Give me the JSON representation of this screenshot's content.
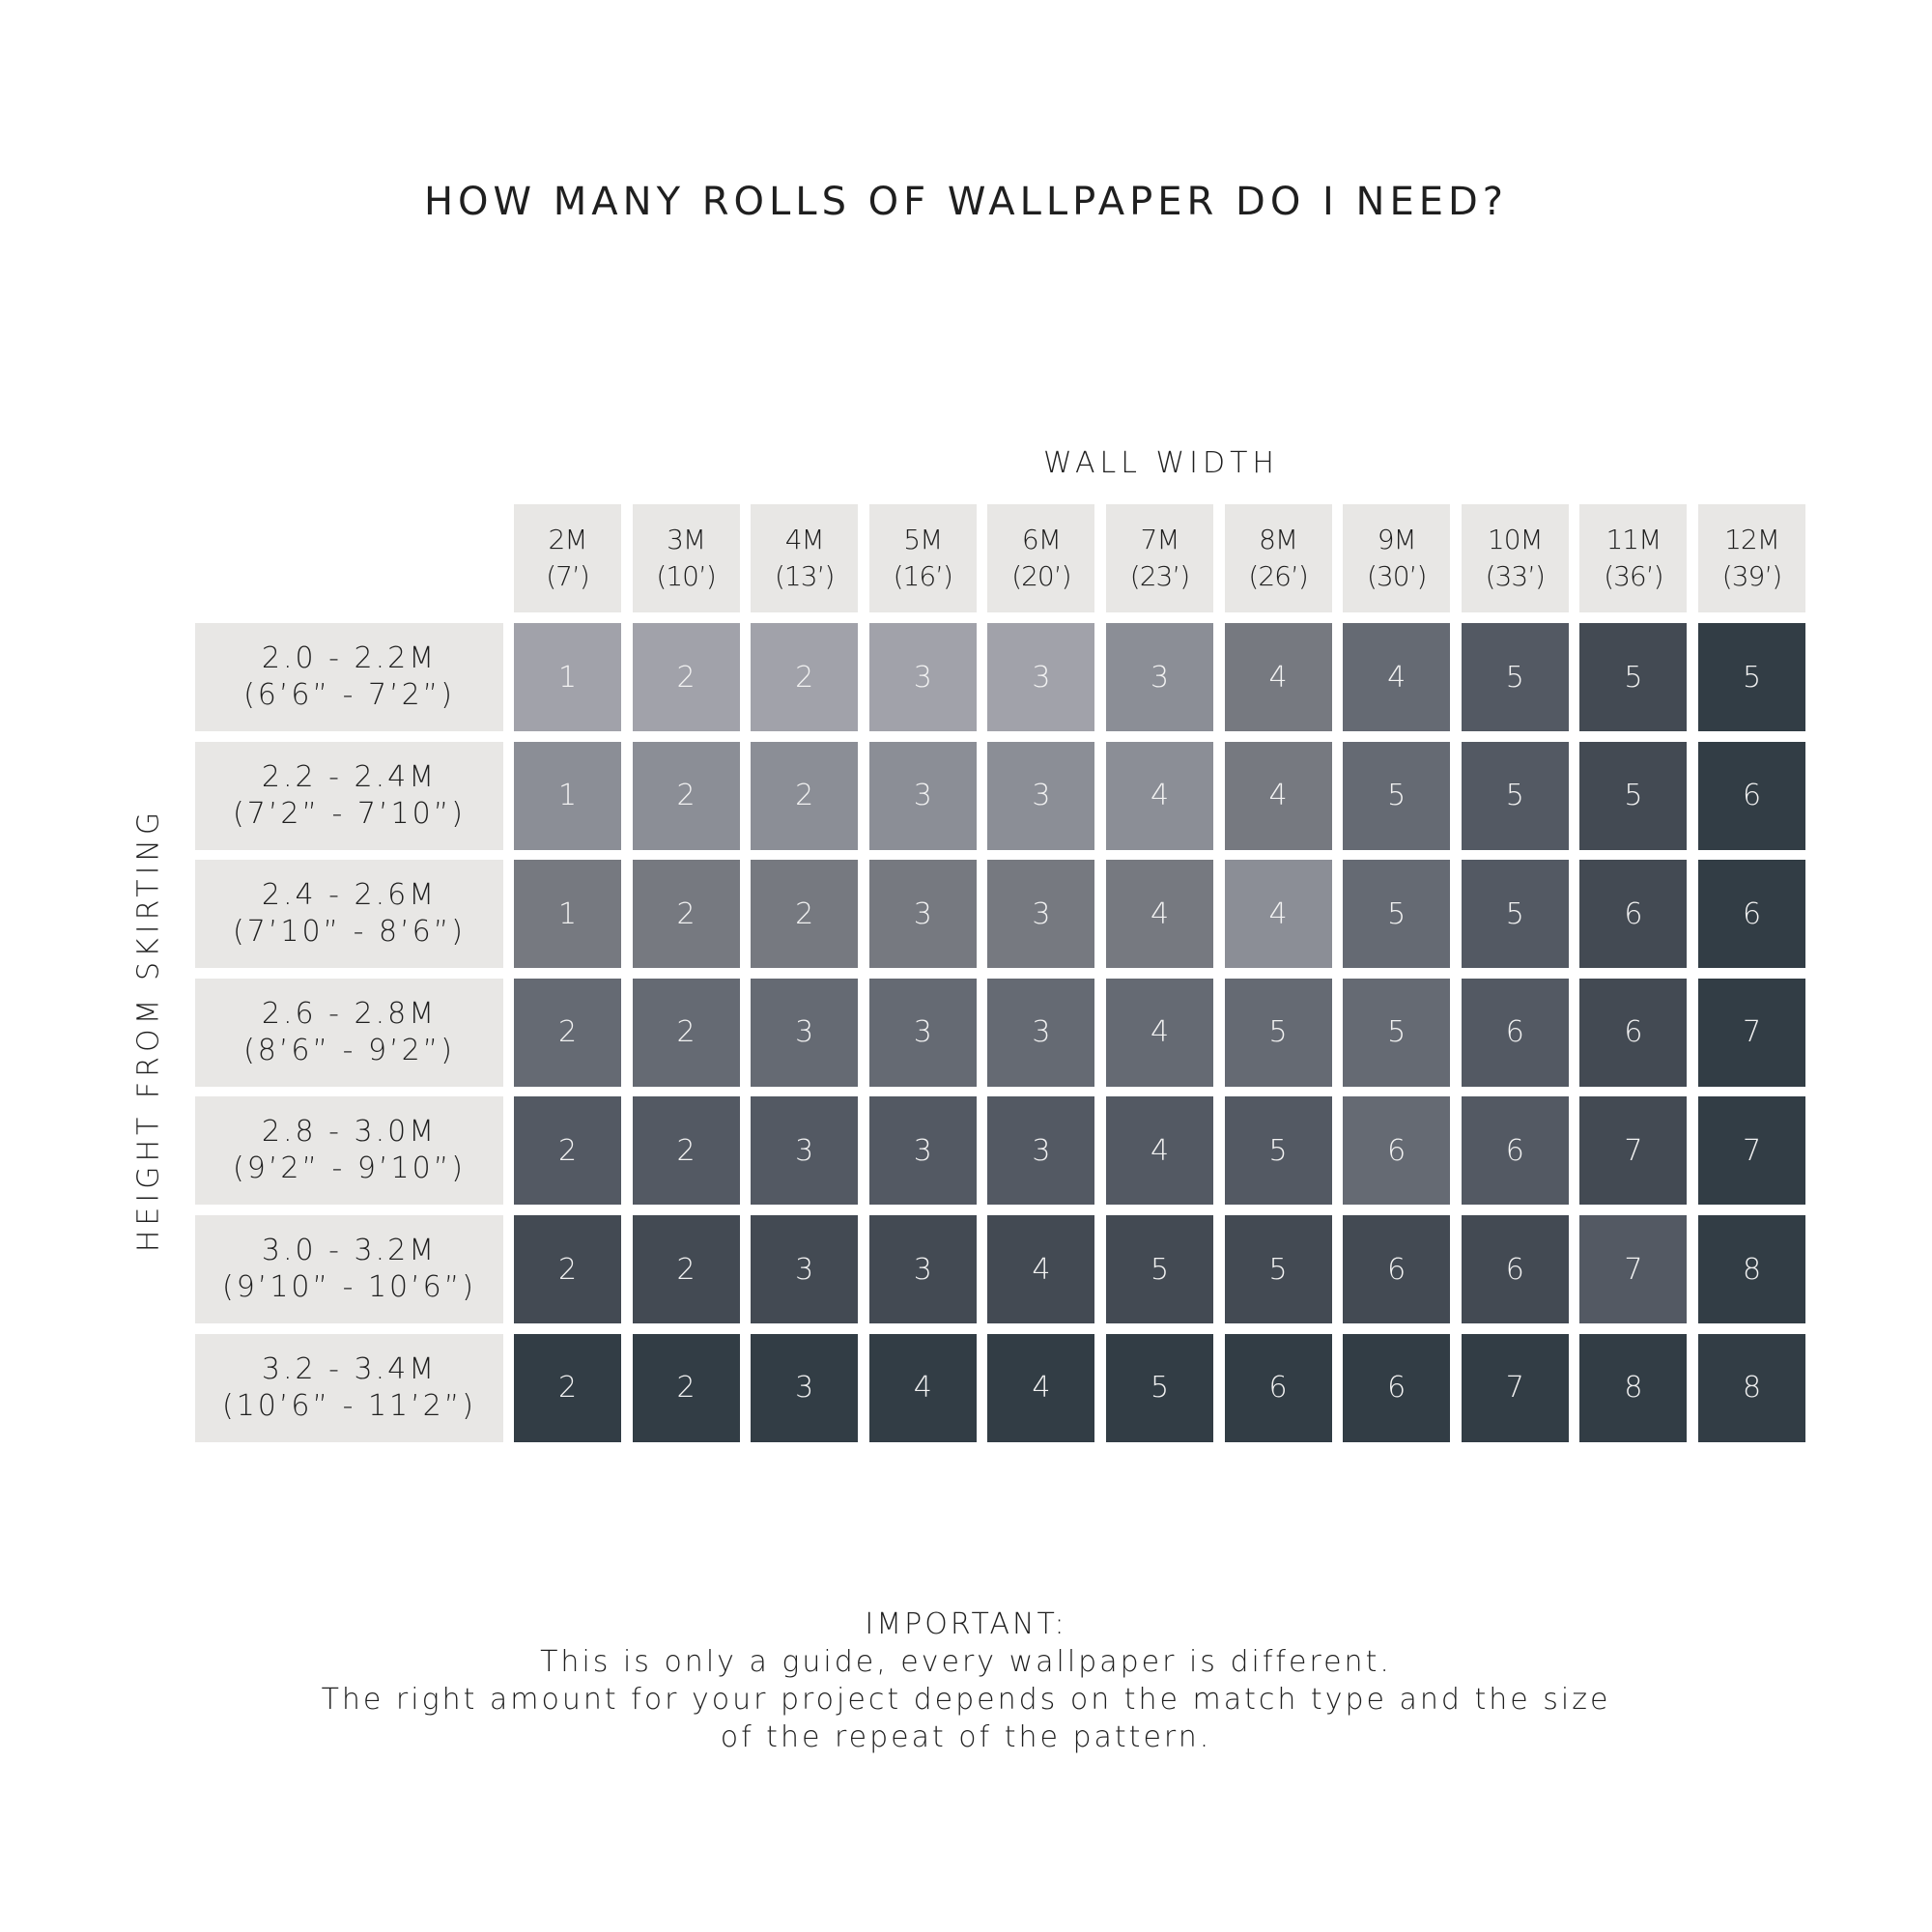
{
  "chart_data": {
    "type": "table",
    "title": "HOW MANY ROLLS OF WALLPAPER DO I NEED?",
    "xlabel": "WALL WIDTH",
    "ylabel": "HEIGHT FROM SKIRTING",
    "columns": [
      {
        "m": "2M",
        "ft": "(7’)"
      },
      {
        "m": "3M",
        "ft": "(10’)"
      },
      {
        "m": "4M",
        "ft": "(13’)"
      },
      {
        "m": "5M",
        "ft": "(16’)"
      },
      {
        "m": "6M",
        "ft": "(20’)"
      },
      {
        "m": "7M",
        "ft": "(23’)"
      },
      {
        "m": "8M",
        "ft": "(26’)"
      },
      {
        "m": "9M",
        "ft": "(30’)"
      },
      {
        "m": "10M",
        "ft": "(33’)"
      },
      {
        "m": "11M",
        "ft": "(36’)"
      },
      {
        "m": "12M",
        "ft": "(39’)"
      }
    ],
    "rows": [
      {
        "m": "2.0 - 2.2M",
        "ft": "(6’6” - 7’2”)"
      },
      {
        "m": "2.2 - 2.4M",
        "ft": "(7’2” - 7’10”)"
      },
      {
        "m": "2.4 - 2.6M",
        "ft": "(7’10” - 8’6”)"
      },
      {
        "m": "2.6 - 2.8M",
        "ft": "(8’6” - 9’2”)"
      },
      {
        "m": "2.8 - 3.0M",
        "ft": "(9’2” - 9’10”)"
      },
      {
        "m": "3.0 - 3.2M",
        "ft": "(9’10” - 10’6”)"
      },
      {
        "m": "3.2 - 3.4M",
        "ft": "(10’6” - 11’2”)"
      }
    ],
    "values": [
      [
        1,
        2,
        2,
        3,
        3,
        3,
        4,
        4,
        5,
        5,
        5
      ],
      [
        1,
        2,
        2,
        3,
        3,
        4,
        4,
        5,
        5,
        5,
        6
      ],
      [
        1,
        2,
        2,
        3,
        3,
        4,
        4,
        5,
        5,
        6,
        6
      ],
      [
        2,
        2,
        3,
        3,
        3,
        4,
        5,
        5,
        6,
        6,
        7
      ],
      [
        2,
        2,
        3,
        3,
        3,
        4,
        5,
        6,
        6,
        7,
        7
      ],
      [
        2,
        2,
        3,
        3,
        4,
        5,
        5,
        6,
        6,
        7,
        8
      ],
      [
        2,
        2,
        3,
        4,
        4,
        5,
        6,
        6,
        7,
        8,
        8
      ]
    ],
    "palette": [
      "#a1a2aa",
      "#8b8e96",
      "#767980",
      "#656a73",
      "#535963",
      "#434a53",
      "#323d45"
    ],
    "shade": [
      [
        0,
        0,
        0,
        0,
        0,
        1,
        2,
        3,
        4,
        5,
        6
      ],
      [
        1,
        1,
        1,
        1,
        1,
        1,
        2,
        3,
        4,
        5,
        6
      ],
      [
        2,
        2,
        2,
        2,
        2,
        2,
        1,
        3,
        4,
        5,
        6
      ],
      [
        3,
        3,
        3,
        3,
        3,
        3,
        3,
        3,
        4,
        5,
        6
      ],
      [
        4,
        4,
        4,
        4,
        4,
        4,
        4,
        3,
        4,
        5,
        6
      ],
      [
        5,
        5,
        5,
        5,
        5,
        5,
        5,
        5,
        5,
        4,
        6
      ],
      [
        6,
        6,
        6,
        6,
        6,
        6,
        6,
        6,
        6,
        6,
        6
      ]
    ],
    "header_bg": "#e8e7e5"
  },
  "footer": {
    "heading": "IMPORTANT:",
    "lines": [
      "This is only a guide, every wallpaper is different.",
      "The right amount for your project depends on the match type and the size",
      "of the repeat of the pattern."
    ]
  }
}
